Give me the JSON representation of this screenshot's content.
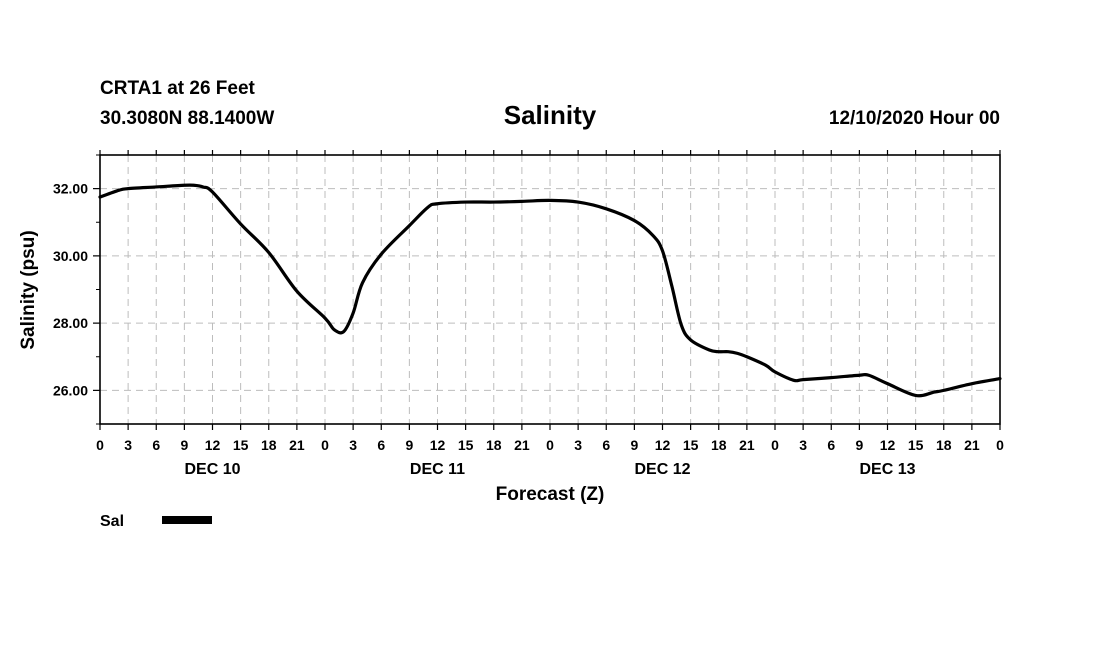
{
  "header": {
    "station": "CRTA1 at 26 Feet",
    "coords": "30.3080N 88.1400W",
    "title": "Salinity",
    "run": "12/10/2020 Hour 00"
  },
  "legend": {
    "label": "Sal"
  },
  "chart_data": {
    "type": "line",
    "title": "Salinity",
    "xlabel": "Forecast (Z)",
    "ylabel": "Salinity (psu)",
    "xlim": [
      0,
      96
    ],
    "ylim": [
      25.0,
      33.0
    ],
    "y_ticks": [
      26,
      28,
      30,
      32
    ],
    "y_tick_labels": [
      "26.00",
      "28.00",
      "30.00",
      "32.00"
    ],
    "y_minor_step": 1,
    "x_tick_step": 3,
    "x_tick_labels": [
      "0",
      "3",
      "6",
      "9",
      "12",
      "15",
      "18",
      "21",
      "0",
      "3",
      "6",
      "9",
      "12",
      "15",
      "18",
      "21",
      "0",
      "3",
      "6",
      "9",
      "12",
      "15",
      "18",
      "21",
      "0",
      "3",
      "6",
      "9",
      "12",
      "15",
      "18",
      "21",
      "0"
    ],
    "date_labels": [
      {
        "text": "DEC 10",
        "x": 12
      },
      {
        "text": "DEC 11",
        "x": 36
      },
      {
        "text": "DEC 12",
        "x": 60
      },
      {
        "text": "DEC 13",
        "x": 84
      }
    ],
    "grid": true,
    "series": [
      {
        "name": "Sal",
        "color": "#000000",
        "x": [
          0,
          2,
          3,
          6,
          9,
          10,
          11,
          12,
          15,
          18,
          21,
          24,
          25,
          26,
          27,
          28,
          30,
          33,
          35,
          36,
          39,
          42,
          45,
          48,
          51,
          54,
          57,
          59,
          60,
          61,
          62,
          63,
          65,
          66,
          67,
          68,
          69,
          71,
          72,
          74,
          75,
          78,
          81,
          82,
          84,
          87,
          89,
          90,
          93,
          96
        ],
        "values": [
          31.75,
          31.95,
          32.0,
          32.05,
          32.1,
          32.1,
          32.05,
          31.9,
          30.95,
          30.1,
          28.95,
          28.15,
          27.8,
          27.75,
          28.3,
          29.2,
          30.05,
          30.9,
          31.45,
          31.55,
          31.6,
          31.6,
          31.62,
          31.65,
          31.6,
          31.4,
          31.05,
          30.6,
          30.15,
          29.1,
          27.95,
          27.5,
          27.2,
          27.15,
          27.15,
          27.1,
          27.0,
          26.75,
          26.55,
          26.3,
          26.32,
          26.38,
          26.45,
          26.45,
          26.2,
          25.85,
          25.95,
          26.0,
          26.2,
          26.35
        ]
      }
    ]
  }
}
